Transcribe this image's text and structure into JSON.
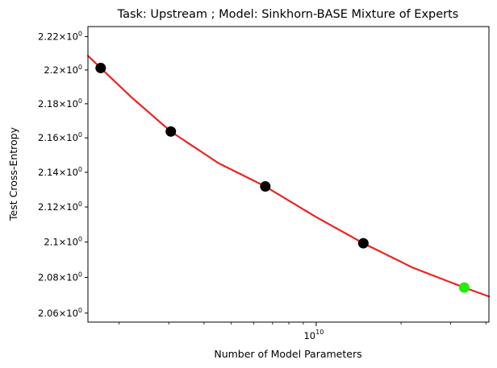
{
  "chart_data": {
    "type": "scatter",
    "title": "Task: Upstream ; Model: Sinkhorn-BASE Mixture of Experts",
    "xlabel": "Number of Model Parameters",
    "ylabel": "Test Cross-Entropy",
    "x_scale": "log",
    "y_scale": "log",
    "xlim": [
      1550000000.0,
      41000000000.0
    ],
    "ylim": [
      2.055,
      2.226
    ],
    "x_ticks": [
      {
        "value": 10000000000.0,
        "base": "10",
        "exp": "10"
      }
    ],
    "y_ticks": [
      {
        "value": 2.06,
        "mant": "2.06",
        "base": "10",
        "exp": "0"
      },
      {
        "value": 2.08,
        "mant": "2.08",
        "base": "10",
        "exp": "0"
      },
      {
        "value": 2.1,
        "mant": "2.1",
        "base": "10",
        "exp": "0"
      },
      {
        "value": 2.12,
        "mant": "2.12",
        "base": "10",
        "exp": "0"
      },
      {
        "value": 2.14,
        "mant": "2.14",
        "base": "10",
        "exp": "0"
      },
      {
        "value": 2.16,
        "mant": "2.16",
        "base": "10",
        "exp": "0"
      },
      {
        "value": 2.18,
        "mant": "2.18",
        "base": "10",
        "exp": "0"
      },
      {
        "value": 2.2,
        "mant": "2.2",
        "base": "10",
        "exp": "0"
      },
      {
        "value": 2.22,
        "mant": "2.22",
        "base": "10",
        "exp": "0"
      }
    ],
    "x_minor_ticks": [
      2000000000.0,
      3000000000.0,
      4000000000.0,
      5000000000.0,
      6000000000.0,
      7000000000.0,
      8000000000.0,
      9000000000.0,
      20000000000.0,
      30000000000.0,
      40000000000.0
    ],
    "series": [
      {
        "kind": "points",
        "color": "#000000",
        "points": [
          {
            "x": 1720000000.0,
            "y": 2.2012
          },
          {
            "x": 3050000000.0,
            "y": 2.1637
          },
          {
            "x": 6600000000.0,
            "y": 2.1318
          },
          {
            "x": 14700000000.0,
            "y": 2.0993
          }
        ]
      },
      {
        "kind": "points",
        "color": "#22ee00",
        "points": [
          {
            "x": 33500000000.0,
            "y": 2.0743
          }
        ]
      },
      {
        "kind": "fit-curve",
        "color": "#ee2222",
        "points": [
          {
            "x": 1550000000.0,
            "y": 2.2085
          },
          {
            "x": 1720000000.0,
            "y": 2.2012
          },
          {
            "x": 2200000000.0,
            "y": 2.1842
          },
          {
            "x": 3050000000.0,
            "y": 2.1637
          },
          {
            "x": 4500000000.0,
            "y": 2.1453
          },
          {
            "x": 6600000000.0,
            "y": 2.1318
          },
          {
            "x": 10000000000.0,
            "y": 2.1142
          },
          {
            "x": 14700000000.0,
            "y": 2.0993
          },
          {
            "x": 22000000000.0,
            "y": 2.0855
          },
          {
            "x": 33500000000.0,
            "y": 2.0743
          },
          {
            "x": 41000000000.0,
            "y": 2.0693
          }
        ]
      }
    ]
  }
}
